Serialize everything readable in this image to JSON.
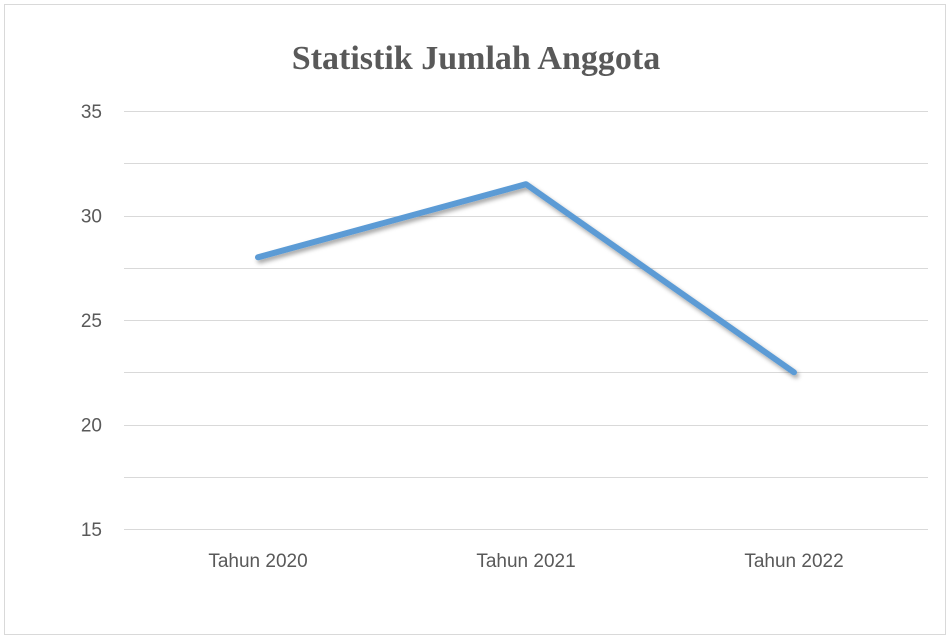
{
  "chart_data": {
    "type": "line",
    "title": "Statistik Jumlah Anggota",
    "categories": [
      "Tahun 2020",
      "Tahun 2021",
      "Tahun 2022"
    ],
    "series": [
      {
        "values": [
          28,
          31.5,
          22.5
        ],
        "color": "#5b9bd5"
      }
    ],
    "ylim": [
      15,
      35
    ],
    "yticks": [
      "15",
      "20",
      "25",
      "30",
      "35"
    ],
    "gridline_step": 2.5,
    "grid": true,
    "legend": "none",
    "gridline_color": "#d9d9d9"
  }
}
